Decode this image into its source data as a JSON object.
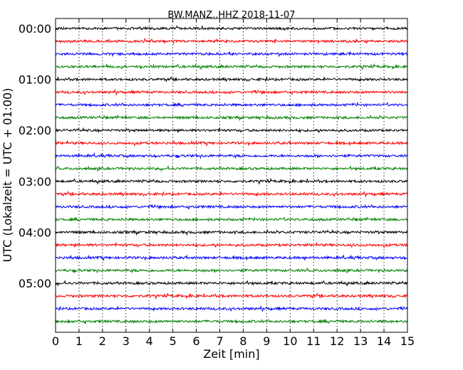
{
  "chart_data": {
    "type": "line",
    "title": "BW.MANZ..HHZ 2018-11-07",
    "xlabel": "Zeit  [min]",
    "ylabel": "UTC (Lokalzeit = UTC + 01:00)",
    "xlim": [
      0,
      15
    ],
    "x_ticks": [
      "0",
      "1",
      "2",
      "3",
      "4",
      "5",
      "6",
      "7",
      "8",
      "9",
      "10",
      "11",
      "12",
      "13",
      "14",
      "15"
    ],
    "y_ticks": [
      "00:00",
      "01:00",
      "02:00",
      "03:00",
      "04:00",
      "05:00"
    ],
    "trace_interval_minutes": 15,
    "trace_count": 24,
    "first_trace_start": "00:00",
    "color_cycle": [
      "#000000",
      "#ff0000",
      "#0000ff",
      "#008000"
    ],
    "grid": "vertical dotted lines at each minute"
  }
}
